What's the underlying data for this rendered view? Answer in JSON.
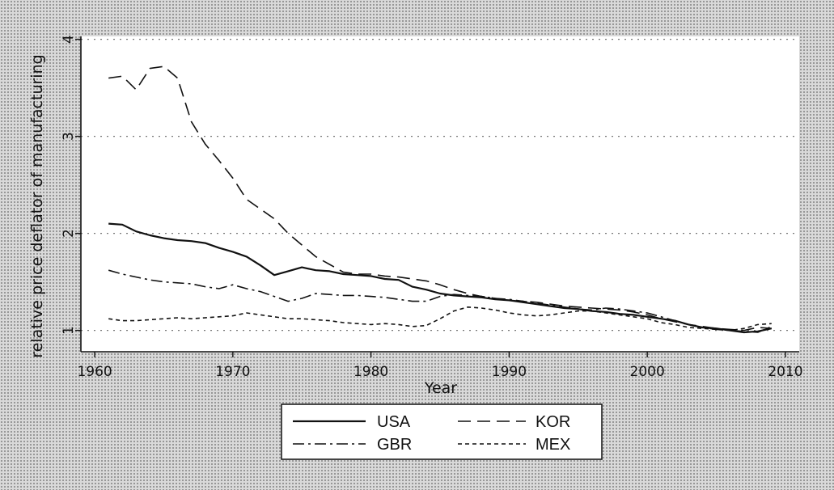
{
  "chart_data": {
    "type": "line",
    "title": "",
    "xlabel": "Year",
    "ylabel": "relative price deflator of manufacturing",
    "xlim": [
      1959,
      2011
    ],
    "ylim": [
      0.78,
      4.03
    ],
    "x_ticks": [
      1960,
      1970,
      1980,
      1990,
      2000,
      2010
    ],
    "y_ticks": [
      1,
      2,
      3,
      4
    ],
    "grid": "horizontal-dotted",
    "legend_position": "bottom-center",
    "series": [
      {
        "name": "USA",
        "dash": "solid",
        "x": [
          1961,
          1962,
          1963,
          1964,
          1965,
          1966,
          1967,
          1968,
          1969,
          1970,
          1971,
          1972,
          1973,
          1974,
          1975,
          1976,
          1977,
          1978,
          1979,
          1980,
          1981,
          1982,
          1983,
          1984,
          1985,
          1986,
          1987,
          1988,
          1989,
          1990,
          1991,
          1992,
          1993,
          1994,
          1995,
          1996,
          1997,
          1998,
          1999,
          2000,
          2001,
          2002,
          2003,
          2004,
          2005,
          2006,
          2007,
          2008,
          2009
        ],
        "y": [
          2.1,
          2.09,
          2.02,
          1.98,
          1.95,
          1.93,
          1.92,
          1.9,
          1.85,
          1.81,
          1.76,
          1.67,
          1.57,
          1.61,
          1.65,
          1.62,
          1.61,
          1.58,
          1.57,
          1.56,
          1.53,
          1.52,
          1.45,
          1.42,
          1.38,
          1.36,
          1.35,
          1.34,
          1.32,
          1.31,
          1.29,
          1.27,
          1.25,
          1.23,
          1.22,
          1.2,
          1.19,
          1.17,
          1.16,
          1.14,
          1.12,
          1.1,
          1.06,
          1.03,
          1.02,
          1.0,
          0.98,
          0.99,
          1.02
        ]
      },
      {
        "name": "KOR",
        "dash": "long-dash",
        "x": [
          1961,
          1962,
          1963,
          1964,
          1965,
          1966,
          1967,
          1968,
          1969,
          1970,
          1971,
          1972,
          1973,
          1974,
          1975,
          1976,
          1977,
          1978,
          1979,
          1980,
          1981,
          1982,
          1983,
          1984,
          1985,
          1986,
          1987,
          1988,
          1989,
          1990,
          1991,
          1992,
          1993,
          1994,
          1995,
          1996,
          1997,
          1998,
          1999,
          2000,
          2001,
          2002,
          2003,
          2004,
          2005,
          2006,
          2007,
          2008,
          2009
        ],
        "y": [
          3.6,
          3.62,
          3.48,
          3.7,
          3.72,
          3.6,
          3.15,
          2.92,
          2.75,
          2.57,
          2.35,
          2.25,
          2.15,
          2.0,
          1.88,
          1.76,
          1.68,
          1.6,
          1.58,
          1.58,
          1.56,
          1.55,
          1.53,
          1.51,
          1.47,
          1.42,
          1.38,
          1.35,
          1.33,
          1.31,
          1.3,
          1.29,
          1.27,
          1.25,
          1.24,
          1.23,
          1.22,
          1.21,
          1.19,
          1.16,
          1.12,
          1.09,
          1.06,
          1.04,
          1.02,
          1.01,
          1.0,
          1.03,
          1.02
        ]
      },
      {
        "name": "GBR",
        "dash": "dash-dot",
        "x": [
          1961,
          1962,
          1963,
          1964,
          1965,
          1966,
          1967,
          1968,
          1969,
          1970,
          1971,
          1972,
          1973,
          1974,
          1975,
          1976,
          1977,
          1978,
          1979,
          1980,
          1981,
          1982,
          1983,
          1984,
          1985,
          1986,
          1987,
          1988,
          1989,
          1990,
          1991,
          1992,
          1993,
          1994,
          1995,
          1996,
          1997,
          1998,
          1999,
          2000,
          2001,
          2002,
          2003,
          2004,
          2005,
          2006,
          2007,
          2008,
          2009
        ],
        "y": [
          1.62,
          1.58,
          1.55,
          1.52,
          1.5,
          1.49,
          1.48,
          1.45,
          1.43,
          1.47,
          1.43,
          1.4,
          1.35,
          1.3,
          1.33,
          1.38,
          1.37,
          1.36,
          1.36,
          1.35,
          1.34,
          1.32,
          1.3,
          1.3,
          1.35,
          1.37,
          1.36,
          1.35,
          1.33,
          1.32,
          1.3,
          1.28,
          1.26,
          1.24,
          1.22,
          1.21,
          1.23,
          1.22,
          1.2,
          1.18,
          1.14,
          1.1,
          1.06,
          1.03,
          1.01,
          1.0,
          0.99,
          0.98,
          1.04
        ]
      },
      {
        "name": "MEX",
        "dash": "short-dash",
        "x": [
          1961,
          1962,
          1963,
          1964,
          1965,
          1966,
          1967,
          1968,
          1969,
          1970,
          1971,
          1972,
          1973,
          1974,
          1975,
          1976,
          1977,
          1978,
          1979,
          1980,
          1981,
          1982,
          1983,
          1984,
          1985,
          1986,
          1987,
          1988,
          1989,
          1990,
          1991,
          1992,
          1993,
          1994,
          1995,
          1996,
          1997,
          1998,
          1999,
          2000,
          2001,
          2002,
          2003,
          2004,
          2005,
          2006,
          2007,
          2008,
          2009
        ],
        "y": [
          1.12,
          1.1,
          1.1,
          1.11,
          1.12,
          1.13,
          1.12,
          1.13,
          1.14,
          1.15,
          1.18,
          1.16,
          1.14,
          1.12,
          1.12,
          1.11,
          1.1,
          1.08,
          1.07,
          1.06,
          1.07,
          1.06,
          1.04,
          1.05,
          1.12,
          1.2,
          1.24,
          1.23,
          1.21,
          1.18,
          1.16,
          1.15,
          1.16,
          1.18,
          1.2,
          1.2,
          1.18,
          1.16,
          1.14,
          1.12,
          1.08,
          1.06,
          1.03,
          1.02,
          1.01,
          1.0,
          1.02,
          1.06,
          1.07
        ]
      }
    ]
  }
}
